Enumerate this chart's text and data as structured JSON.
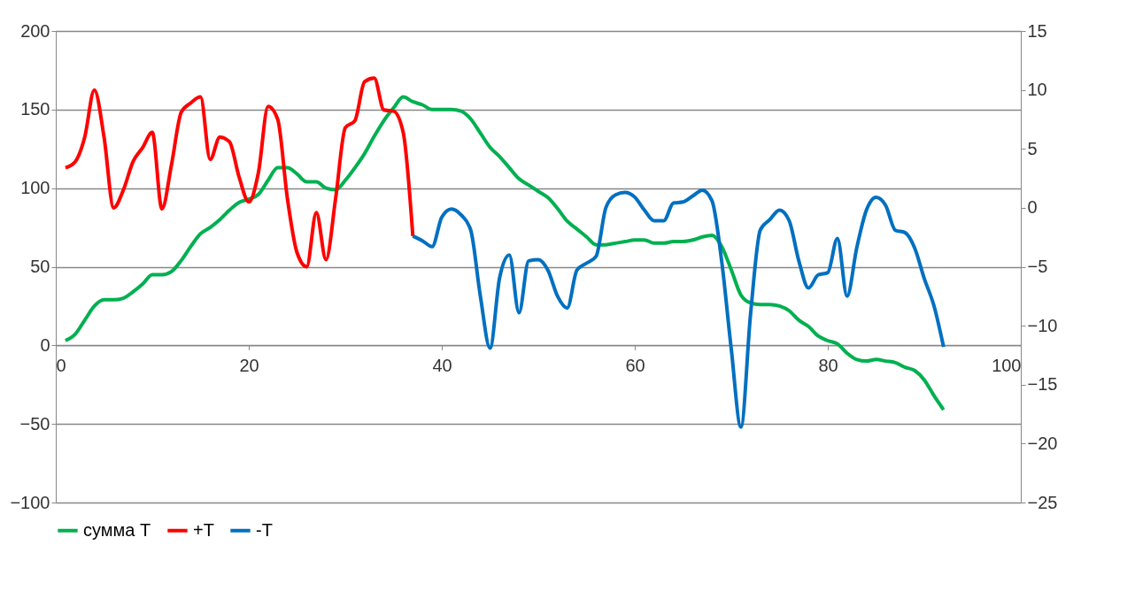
{
  "chart_data": {
    "type": "line",
    "xlim": [
      0,
      100
    ],
    "xticks": [
      0,
      20,
      40,
      60,
      80,
      100
    ],
    "ylim": [
      -100,
      200
    ],
    "yticks": [
      -100,
      -50,
      0,
      50,
      100,
      150,
      200
    ],
    "y2lim": [
      -25,
      15
    ],
    "y2ticks": [
      -25,
      -20,
      -15,
      -10,
      -5,
      0,
      5,
      10,
      15
    ],
    "grid": "y",
    "legend": "bottom",
    "marker": "none",
    "line_style": "solid",
    "series": [
      {
        "name": "сумма T",
        "color": "#00b050",
        "x": [
          1,
          2,
          3,
          4,
          5,
          6,
          7,
          8,
          9,
          10,
          11,
          12,
          13,
          14,
          15,
          16,
          17,
          18,
          19,
          20,
          21,
          22,
          23,
          24,
          25,
          26,
          27,
          28,
          29,
          30,
          31,
          32,
          33,
          34,
          35,
          36,
          37,
          38,
          39,
          40,
          41,
          42,
          43,
          44,
          45,
          46,
          47,
          48,
          49,
          50,
          51,
          52,
          53,
          54,
          55,
          56,
          57,
          58,
          59,
          60,
          61,
          62,
          63,
          64,
          65,
          66,
          67,
          68,
          69,
          70,
          71,
          72,
          73,
          74,
          75,
          76,
          77,
          78,
          79,
          80,
          81,
          82,
          83,
          84,
          85,
          86,
          87,
          88,
          89,
          90,
          91,
          92
        ],
        "values": [
          3,
          7,
          16,
          25,
          29,
          29,
          30,
          34,
          39,
          45,
          45,
          47,
          54,
          63,
          71,
          75,
          80,
          86,
          91,
          93,
          96,
          105,
          113,
          113,
          109,
          104,
          104,
          100,
          99,
          105,
          113,
          122,
          133,
          143,
          151,
          158,
          155,
          153,
          150,
          150,
          150,
          149,
          144,
          135,
          126,
          120,
          113,
          106,
          102,
          98,
          94,
          87,
          79,
          74,
          69,
          64,
          64,
          65,
          66,
          67,
          67,
          65,
          65,
          66,
          66,
          67,
          69,
          70,
          63,
          48,
          32,
          27,
          26,
          26,
          25,
          22,
          16,
          12,
          6,
          3,
          1,
          -5,
          -9,
          -10,
          -9,
          -10,
          -11,
          -14,
          -16,
          -22,
          -32,
          -41
        ]
      },
      {
        "name": "+T",
        "color": "#ff0000",
        "axis": "y2",
        "x": [
          1,
          2,
          3,
          4,
          5,
          6,
          7,
          8,
          9,
          10,
          11,
          12,
          13,
          14,
          15,
          16,
          17,
          18,
          19,
          20,
          21,
          22,
          23,
          24,
          25,
          26,
          27,
          28,
          29,
          30,
          31,
          32,
          33,
          34,
          35,
          36,
          37
        ],
        "values": [
          3.4,
          3.9,
          6.0,
          10.0,
          6.0,
          0,
          1.5,
          3.9,
          5.1,
          6.4,
          -0.1,
          3.7,
          8.1,
          8.9,
          9.4,
          4.1,
          6.0,
          5.6,
          2.6,
          0.5,
          3.0,
          8.6,
          7.5,
          0.8,
          -3.8,
          -5.0,
          -0.4,
          -4.4,
          0.8,
          6.8,
          7.4,
          10.7,
          11.0,
          8.3,
          8.2,
          6.4,
          -2.4
        ]
      },
      {
        "name": "-T",
        "color": "#0070c0",
        "axis": "y2",
        "x": [
          37,
          38,
          39,
          40,
          41,
          42,
          43,
          44,
          45,
          46,
          47,
          48,
          49,
          50,
          51,
          52,
          53,
          54,
          55,
          56,
          57,
          58,
          59,
          60,
          61,
          62,
          63,
          64,
          65,
          66,
          67,
          68,
          69,
          70,
          71,
          72,
          73,
          74,
          75,
          76,
          77,
          78,
          79,
          80,
          81,
          82,
          83,
          84,
          85,
          86,
          87,
          88,
          89,
          90,
          91,
          92
        ],
        "values": [
          -2.4,
          -2.8,
          -3.3,
          -0.8,
          -0.1,
          -0.6,
          -1.9,
          -7.5,
          -11.9,
          -5.9,
          -4.0,
          -8.9,
          -4.5,
          -4.4,
          -5.3,
          -7.5,
          -8.5,
          -5.3,
          -4.7,
          -4.1,
          0,
          1.1,
          1.3,
          0.9,
          -0.2,
          -1.1,
          -1.1,
          0.4,
          0.5,
          1.0,
          1.5,
          0.6,
          -4.5,
          -12,
          -18.6,
          -9.0,
          -1.9,
          -1.0,
          -0.2,
          -1.1,
          -4.5,
          -6.8,
          -5.7,
          -5.5,
          -2.6,
          -7.5,
          -3.4,
          -0.2,
          0.9,
          0.2,
          -1.9,
          -2.1,
          -3.4,
          -6.0,
          -8.3,
          -11.8
        ]
      }
    ]
  }
}
